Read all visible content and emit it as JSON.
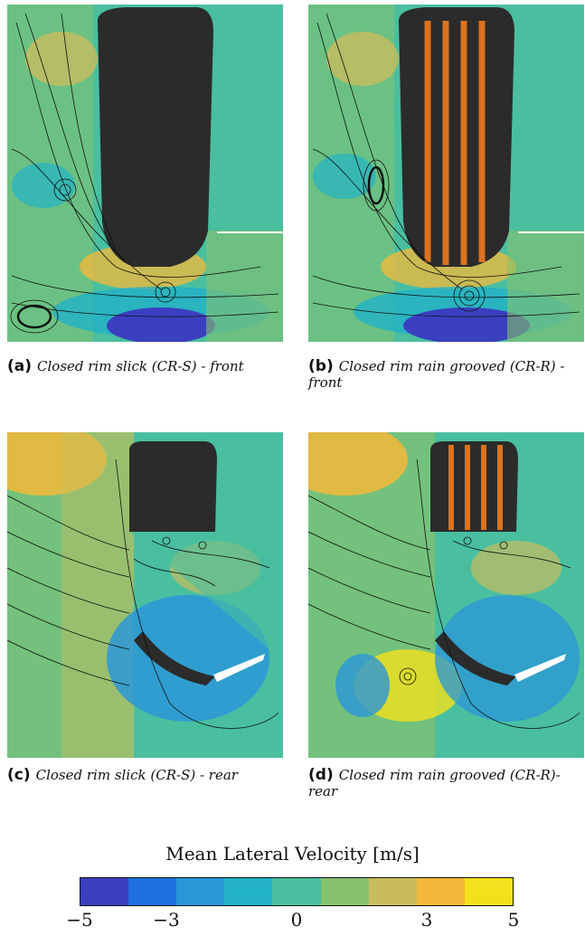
{
  "panels": [
    {
      "id": "a",
      "label": "(a)",
      "caption": "Closed rim slick (CR-S) - front"
    },
    {
      "id": "b",
      "label": "(b)",
      "caption": "Closed rim rain grooved (CR-R) - front"
    },
    {
      "id": "c",
      "label": "(c)",
      "caption": "Closed rim slick (CR-S) - rear"
    },
    {
      "id": "d",
      "label": "(d)",
      "caption": "Closed rim rain grooved (CR-R)- rear"
    }
  ],
  "colorbar": {
    "title": "Mean Lateral Velocity [m/s]",
    "ticks": [
      "−5",
      "−3",
      "0",
      "3",
      "5"
    ],
    "tick_values": [
      -5,
      -3,
      0,
      3,
      5
    ],
    "range": [
      -5,
      5
    ],
    "colors": [
      "#3a3fbf",
      "#1f6fe0",
      "#2a96d8",
      "#22b2c8",
      "#49bfa0",
      "#86c26c",
      "#c8bc5e",
      "#f5b83a",
      "#f3e11c"
    ]
  },
  "colors": {
    "tyre": "#2b2b2b",
    "groove": "#d9731f",
    "streamline": "#111111"
  }
}
